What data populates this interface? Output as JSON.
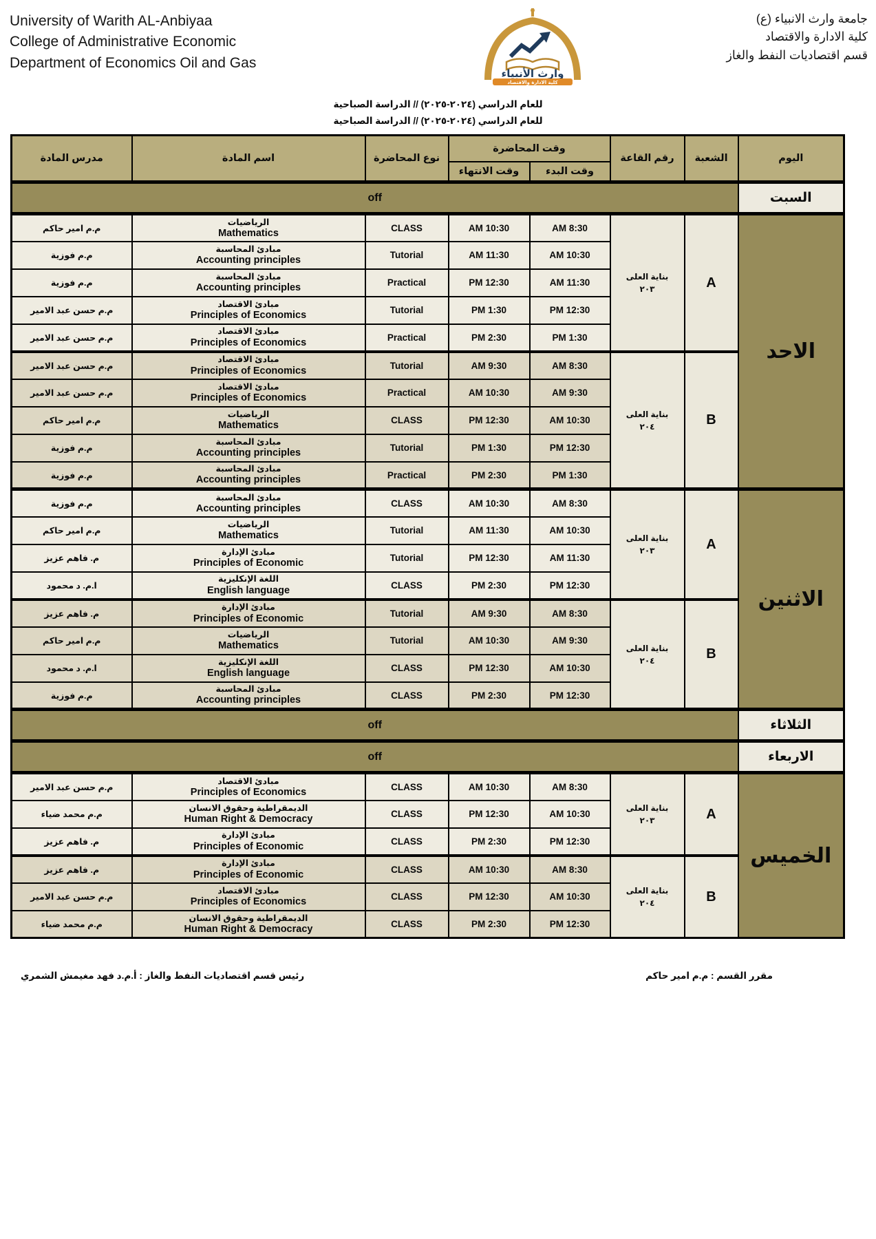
{
  "header": {
    "english_lines": [
      "University of Warith AL-Anbiyaa",
      "College of Administrative Economic",
      "Department of Economics Oil and Gas"
    ],
    "arabic_lines": [
      "جامعة وارث الانبياء (ع)",
      "كلية الادارة والاقتصاد",
      "قسم اقتصاديات النفط والغاز"
    ],
    "logo": {
      "name_arabic": "وارث الأنبياء",
      "year": "2017",
      "banner_arabic": "كلية الادارة والاقتصاد"
    }
  },
  "term_title_1": "للعام الدراسي (٢٠٢٤-٢٠٢٥) // الدراسة الصباحية",
  "term_title_2": "للعام الدراسي (٢٠٢٤-٢٠٢٥) // الدراسة الصباحية",
  "colors": {
    "header_fill": "#b9ae7e",
    "olive_fill": "#978c5a",
    "row_a_fill": "#efece1",
    "row_b_fill": "#ddd7c3",
    "light_cell_fill": "#ebe8db",
    "logo_gold": "#c9973b",
    "logo_orange": "#e08a28",
    "logo_navy": "#1f3b5c"
  },
  "table": {
    "headers": {
      "day": "اليوم",
      "section": "الشعبة",
      "room": "رقم القاعة",
      "time_group": "وقت المحاضرة",
      "start": "وقت البدء",
      "end": "وقت الانتهاء",
      "type": "نوع المحاضرة",
      "subject": "اسم المادة",
      "teacher": "مدرس المادة"
    },
    "off_label": "off",
    "days": [
      {
        "name": "السبت",
        "off": true
      },
      {
        "name": "الاحد",
        "sections": [
          {
            "letter": "A",
            "room_line1": "بناية العلى",
            "room_line2": "٢٠٣",
            "rows": [
              {
                "teacher": "م.م امير حاكم",
                "subject_ar": "الرياضيات",
                "subject_en": "Mathematics",
                "type": "CLASS",
                "start": "8:30 AM",
                "end": "10:30 AM"
              },
              {
                "teacher": "م.م فوزية",
                "subject_ar": "مبادئ المحاسبة",
                "subject_en": "Accounting principles",
                "type": "Tutorial",
                "start": "10:30 AM",
                "end": "11:30 AM"
              },
              {
                "teacher": "م.م فوزية",
                "subject_ar": "مبادئ المحاسبة",
                "subject_en": "Accounting principles",
                "type": "Practical",
                "start": "11:30 AM",
                "end": "12:30 PM"
              },
              {
                "teacher": "م.م حسن عبد الامير",
                "subject_ar": "مبادئ الاقتصاد",
                "subject_en": "Principles of Economics",
                "type": "Tutorial",
                "start": "12:30 PM",
                "end": "1:30 PM"
              },
              {
                "teacher": "م.م حسن عبد الامير",
                "subject_ar": "مبادئ الاقتصاد",
                "subject_en": "Principles of Economics",
                "type": "Practical",
                "start": "1:30 PM",
                "end": "2:30 PM"
              }
            ]
          },
          {
            "letter": "B",
            "room_line1": "بناية العلى",
            "room_line2": "٢٠٤",
            "rows": [
              {
                "teacher": "م.م حسن عبد الامير",
                "subject_ar": "مبادئ الاقتصاد",
                "subject_en": "Principles of Economics",
                "type": "Tutorial",
                "start": "8:30 AM",
                "end": "9:30 AM"
              },
              {
                "teacher": "م.م حسن عبد الامير",
                "subject_ar": "مبادئ الاقتصاد",
                "subject_en": "Principles of Economics",
                "type": "Practical",
                "start": "9:30 AM",
                "end": "10:30 AM"
              },
              {
                "teacher": "م.م امير حاكم",
                "subject_ar": "الرياضيات",
                "subject_en": "Mathematics",
                "type": "CLASS",
                "start": "10:30 AM",
                "end": "12:30 PM"
              },
              {
                "teacher": "م.م فوزية",
                "subject_ar": "مبادئ المحاسبة",
                "subject_en": "Accounting principles",
                "type": "Tutorial",
                "start": "12:30 PM",
                "end": "1:30 PM"
              },
              {
                "teacher": "م.م فوزية",
                "subject_ar": "مبادئ المحاسبة",
                "subject_en": "Accounting principles",
                "type": "Practical",
                "start": "1:30 PM",
                "end": "2:30 PM"
              }
            ]
          }
        ]
      },
      {
        "name": "الاثنين",
        "sections": [
          {
            "letter": "A",
            "room_line1": "بناية العلى",
            "room_line2": "٢٠٣",
            "rows": [
              {
                "teacher": "م.م فوزية",
                "subject_ar": "مبادئ المحاسبة",
                "subject_en": "Accounting principles",
                "type": "CLASS",
                "start": "8:30 AM",
                "end": "10:30 AM"
              },
              {
                "teacher": "م.م امير حاكم",
                "subject_ar": "الرياضيات",
                "subject_en": "Mathematics",
                "type": "Tutorial",
                "start": "10:30 AM",
                "end": "11:30 AM"
              },
              {
                "teacher": "م. فاهم عزيز",
                "subject_ar": "مبادئ الإدارة",
                "subject_en": "Principles of Economic",
                "type": "Tutorial",
                "start": "11:30 AM",
                "end": "12:30 PM"
              },
              {
                "teacher": "ا.م. د محمود",
                "subject_ar": "اللغة الإنكليزية",
                "subject_en": "English language",
                "type": "CLASS",
                "start": "12:30 PM",
                "end": "2:30 PM"
              }
            ]
          },
          {
            "letter": "B",
            "room_line1": "بناية العلى",
            "room_line2": "٢٠٤",
            "rows": [
              {
                "teacher": "م. فاهم عزيز",
                "subject_ar": "مبادئ الإدارة",
                "subject_en": "Principles of Economic",
                "type": "Tutorial",
                "start": "8:30 AM",
                "end": "9:30 AM"
              },
              {
                "teacher": "م.م امير حاكم",
                "subject_ar": "الرياضيات",
                "subject_en": "Mathematics",
                "type": "Tutorial",
                "start": "9:30 AM",
                "end": "10:30 AM"
              },
              {
                "teacher": "ا.م. د محمود",
                "subject_ar": "اللغة الإنكليزية",
                "subject_en": "English language",
                "type": "CLASS",
                "start": "10:30 AM",
                "end": "12:30 PM"
              },
              {
                "teacher": "م.م فوزية",
                "subject_ar": "مبادئ المحاسبة",
                "subject_en": "Accounting principles",
                "type": "CLASS",
                "start": "12:30 PM",
                "end": "2:30 PM"
              }
            ]
          }
        ]
      },
      {
        "name": "الثلاثاء",
        "off": true
      },
      {
        "name": "الاربعاء",
        "off": true
      },
      {
        "name": "الخميس",
        "sections": [
          {
            "letter": "A",
            "room_line1": "بناية العلى",
            "room_line2": "٢٠٣",
            "rows": [
              {
                "teacher": "م.م حسن عبد الامير",
                "subject_ar": "مبادئ الاقتصاد",
                "subject_en": "Principles of Economics",
                "type": "CLASS",
                "start": "8:30 AM",
                "end": "10:30 AM"
              },
              {
                "teacher": "م.م محمد ضياء",
                "subject_ar": "الديمقراطية وحقوق الانسان",
                "subject_en": "Human Right & Democracy",
                "type": "CLASS",
                "start": "10:30 AM",
                "end": "12:30 PM"
              },
              {
                "teacher": "م. فاهم عزيز",
                "subject_ar": "مبادئ الإدارة",
                "subject_en": "Principles of Economic",
                "type": "CLASS",
                "start": "12:30 PM",
                "end": "2:30 PM"
              }
            ]
          },
          {
            "letter": "B",
            "room_line1": "بناية العلى",
            "room_line2": "٢٠٤",
            "rows": [
              {
                "teacher": "م. فاهم عزيز",
                "subject_ar": "مبادئ الإدارة",
                "subject_en": "Principles of Economic",
                "type": "CLASS",
                "start": "8:30 AM",
                "end": "10:30 AM"
              },
              {
                "teacher": "م.م حسن عبد الامير",
                "subject_ar": "مبادئ الاقتصاد",
                "subject_en": "Principles of Economics",
                "type": "CLASS",
                "start": "10:30 AM",
                "end": "12:30 PM"
              },
              {
                "teacher": "م.م محمد ضياء",
                "subject_ar": "الديمقراطية وحقوق الانسان",
                "subject_en": "Human Right & Democracy",
                "type": "CLASS",
                "start": "12:30 PM",
                "end": "2:30 PM"
              }
            ]
          }
        ]
      }
    ]
  },
  "footer": {
    "left": "رئيس قسم اقتصاديات النفط والغاز :  أ.م.د فهد مغيمش الشمري",
    "right": "مقرر القسم : م.م امير حاكم"
  }
}
